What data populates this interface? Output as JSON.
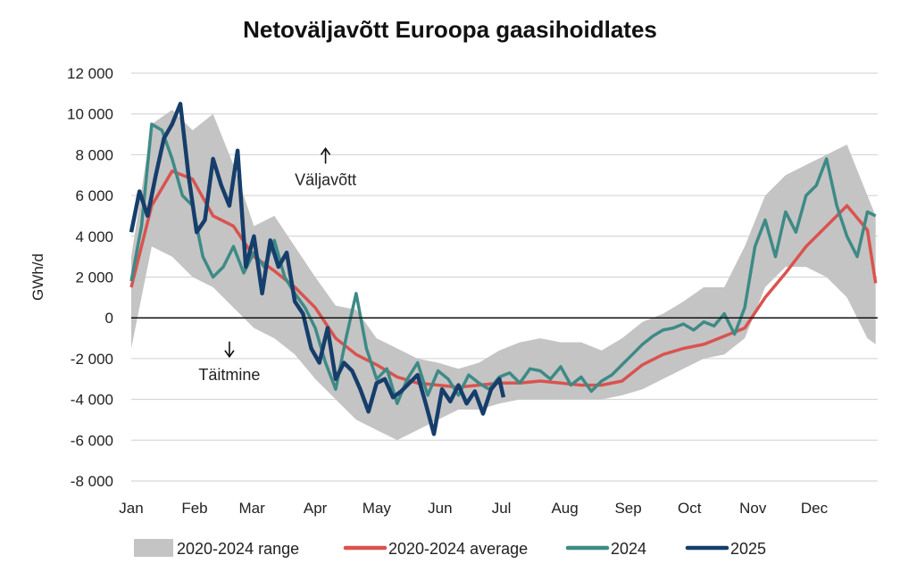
{
  "chart_data": {
    "type": "line",
    "title": "Netoväljavõtt Euroopa gaasihoidlates",
    "ylabel": "GWh/d",
    "xlabel": "",
    "ylim": [
      -8000,
      12000
    ],
    "yticks": [
      12000,
      10000,
      8000,
      6000,
      4000,
      2000,
      0,
      -2000,
      -4000,
      -6000,
      -8000
    ],
    "ytick_labels": [
      "12 000",
      "10 000",
      "8 000",
      "6 000",
      "4 000",
      "2 000",
      "0",
      "-2 000",
      "-4 000",
      "-6 000",
      "-8 000"
    ],
    "xlim": [
      0,
      365
    ],
    "month_labels": [
      "Jan",
      "Feb",
      "Mar",
      "Apr",
      "May",
      "Jun",
      "Jul",
      "Aug",
      "Sep",
      "Oct",
      "Nov",
      "Dec"
    ],
    "month_days": [
      0,
      31,
      59,
      90,
      120,
      151,
      181,
      212,
      243,
      273,
      304,
      334
    ],
    "grid": true,
    "legend_position": "bottom",
    "annotations": [
      {
        "text": "Väljavõtt",
        "arrow": "up",
        "x": 95,
        "y": 8000
      },
      {
        "text": "Täitmine",
        "arrow": "down",
        "x": 48,
        "y": -1600
      }
    ],
    "series": [
      {
        "name": "2020-2024 range",
        "kind": "band",
        "color": "#c4c4c4",
        "x": [
          0,
          10,
          20,
          30,
          40,
          50,
          60,
          70,
          80,
          90,
          100,
          110,
          120,
          130,
          140,
          150,
          160,
          170,
          180,
          190,
          200,
          210,
          220,
          230,
          240,
          250,
          260,
          270,
          280,
          290,
          300,
          310,
          320,
          330,
          340,
          350,
          360,
          364
        ],
        "upper": [
          3000,
          9500,
          10200,
          9200,
          10000,
          7500,
          4500,
          5000,
          3500,
          2000,
          600,
          400,
          -1000,
          -1500,
          -2000,
          -2200,
          -2500,
          -2200,
          -1600,
          -1200,
          -1000,
          -1200,
          -1200,
          -1600,
          -1000,
          -200,
          200,
          800,
          1500,
          1500,
          3500,
          6000,
          7000,
          7500,
          8000,
          8500,
          6000,
          5000
        ],
        "lower": [
          -1500,
          3500,
          3000,
          2000,
          1500,
          500,
          -500,
          -1000,
          -1800,
          -3000,
          -4000,
          -5000,
          -5500,
          -6000,
          -5500,
          -5000,
          -4500,
          -4500,
          -4200,
          -4000,
          -4000,
          -4000,
          -4000,
          -4000,
          -3800,
          -3500,
          -3000,
          -2500,
          -2000,
          -1800,
          -1000,
          1500,
          2500,
          2500,
          2000,
          1000,
          -1000,
          -1300
        ]
      },
      {
        "name": "2020-2024 average",
        "kind": "line",
        "color": "#d9534f",
        "x": [
          0,
          10,
          20,
          30,
          40,
          50,
          60,
          70,
          80,
          90,
          100,
          110,
          120,
          130,
          140,
          150,
          160,
          170,
          180,
          190,
          200,
          210,
          220,
          230,
          240,
          250,
          260,
          270,
          280,
          290,
          300,
          310,
          320,
          330,
          340,
          350,
          360,
          364
        ],
        "values": [
          1500,
          5500,
          7200,
          6800,
          5000,
          4500,
          3000,
          2300,
          1500,
          500,
          -1000,
          -1800,
          -2300,
          -2900,
          -3200,
          -3300,
          -3400,
          -3300,
          -3200,
          -3200,
          -3100,
          -3200,
          -3300,
          -3300,
          -3100,
          -2300,
          -1800,
          -1500,
          -1300,
          -900,
          -500,
          1000,
          2200,
          3500,
          4500,
          5500,
          4300,
          1700
        ]
      },
      {
        "name": "2024",
        "kind": "line",
        "color": "#3e8a86",
        "x": [
          0,
          5,
          10,
          15,
          20,
          25,
          30,
          35,
          40,
          45,
          50,
          55,
          60,
          65,
          70,
          75,
          80,
          85,
          90,
          95,
          100,
          105,
          110,
          115,
          120,
          125,
          130,
          135,
          140,
          145,
          150,
          155,
          160,
          165,
          170,
          175,
          180,
          185,
          190,
          195,
          200,
          205,
          210,
          215,
          220,
          225,
          230,
          235,
          240,
          245,
          250,
          255,
          260,
          265,
          270,
          275,
          280,
          285,
          290,
          295,
          300,
          305,
          310,
          315,
          320,
          325,
          330,
          335,
          340,
          345,
          350,
          355,
          360,
          364
        ],
        "values": [
          1800,
          4500,
          9500,
          9200,
          7800,
          6000,
          5500,
          3000,
          2000,
          2500,
          3500,
          2200,
          3200,
          2500,
          3800,
          2000,
          1200,
          500,
          -500,
          -2200,
          -3500,
          -1000,
          1200,
          -1500,
          -3000,
          -2500,
          -4200,
          -3000,
          -2200,
          -3800,
          -2600,
          -3000,
          -3800,
          -2800,
          -3200,
          -3500,
          -2900,
          -2700,
          -3200,
          -2500,
          -2600,
          -3000,
          -2400,
          -3300,
          -2900,
          -3600,
          -3100,
          -2800,
          -2300,
          -1800,
          -1300,
          -900,
          -600,
          -500,
          -300,
          -600,
          -200,
          -400,
          200,
          -800,
          500,
          3500,
          4800,
          3000,
          5200,
          4200,
          6000,
          6500,
          7800,
          5500,
          4000,
          3000,
          5200,
          5000
        ]
      },
      {
        "name": "2025",
        "kind": "line",
        "color": "#163e6b",
        "x": [
          0,
          4,
          8,
          12,
          16,
          20,
          24,
          28,
          32,
          36,
          40,
          44,
          48,
          52,
          56,
          60,
          64,
          68,
          72,
          76,
          80,
          84,
          88,
          92,
          96,
          100,
          104,
          108,
          112,
          116,
          120,
          124,
          128,
          132,
          136,
          140,
          144,
          148,
          152,
          156,
          160,
          164,
          168,
          172,
          176,
          180,
          182
        ],
        "values": [
          4200,
          6200,
          5000,
          7000,
          8800,
          9500,
          10500,
          7000,
          4200,
          4800,
          7800,
          6500,
          5500,
          8200,
          2500,
          4000,
          1200,
          3800,
          2500,
          3200,
          800,
          200,
          -1500,
          -2200,
          -500,
          -3000,
          -2200,
          -2600,
          -3500,
          -4600,
          -3200,
          -3000,
          -3900,
          -3600,
          -3200,
          -2800,
          -4200,
          -5700,
          -3500,
          -4100,
          -3300,
          -4200,
          -3600,
          -4700,
          -3500,
          -3000,
          -3900
        ]
      }
    ]
  }
}
